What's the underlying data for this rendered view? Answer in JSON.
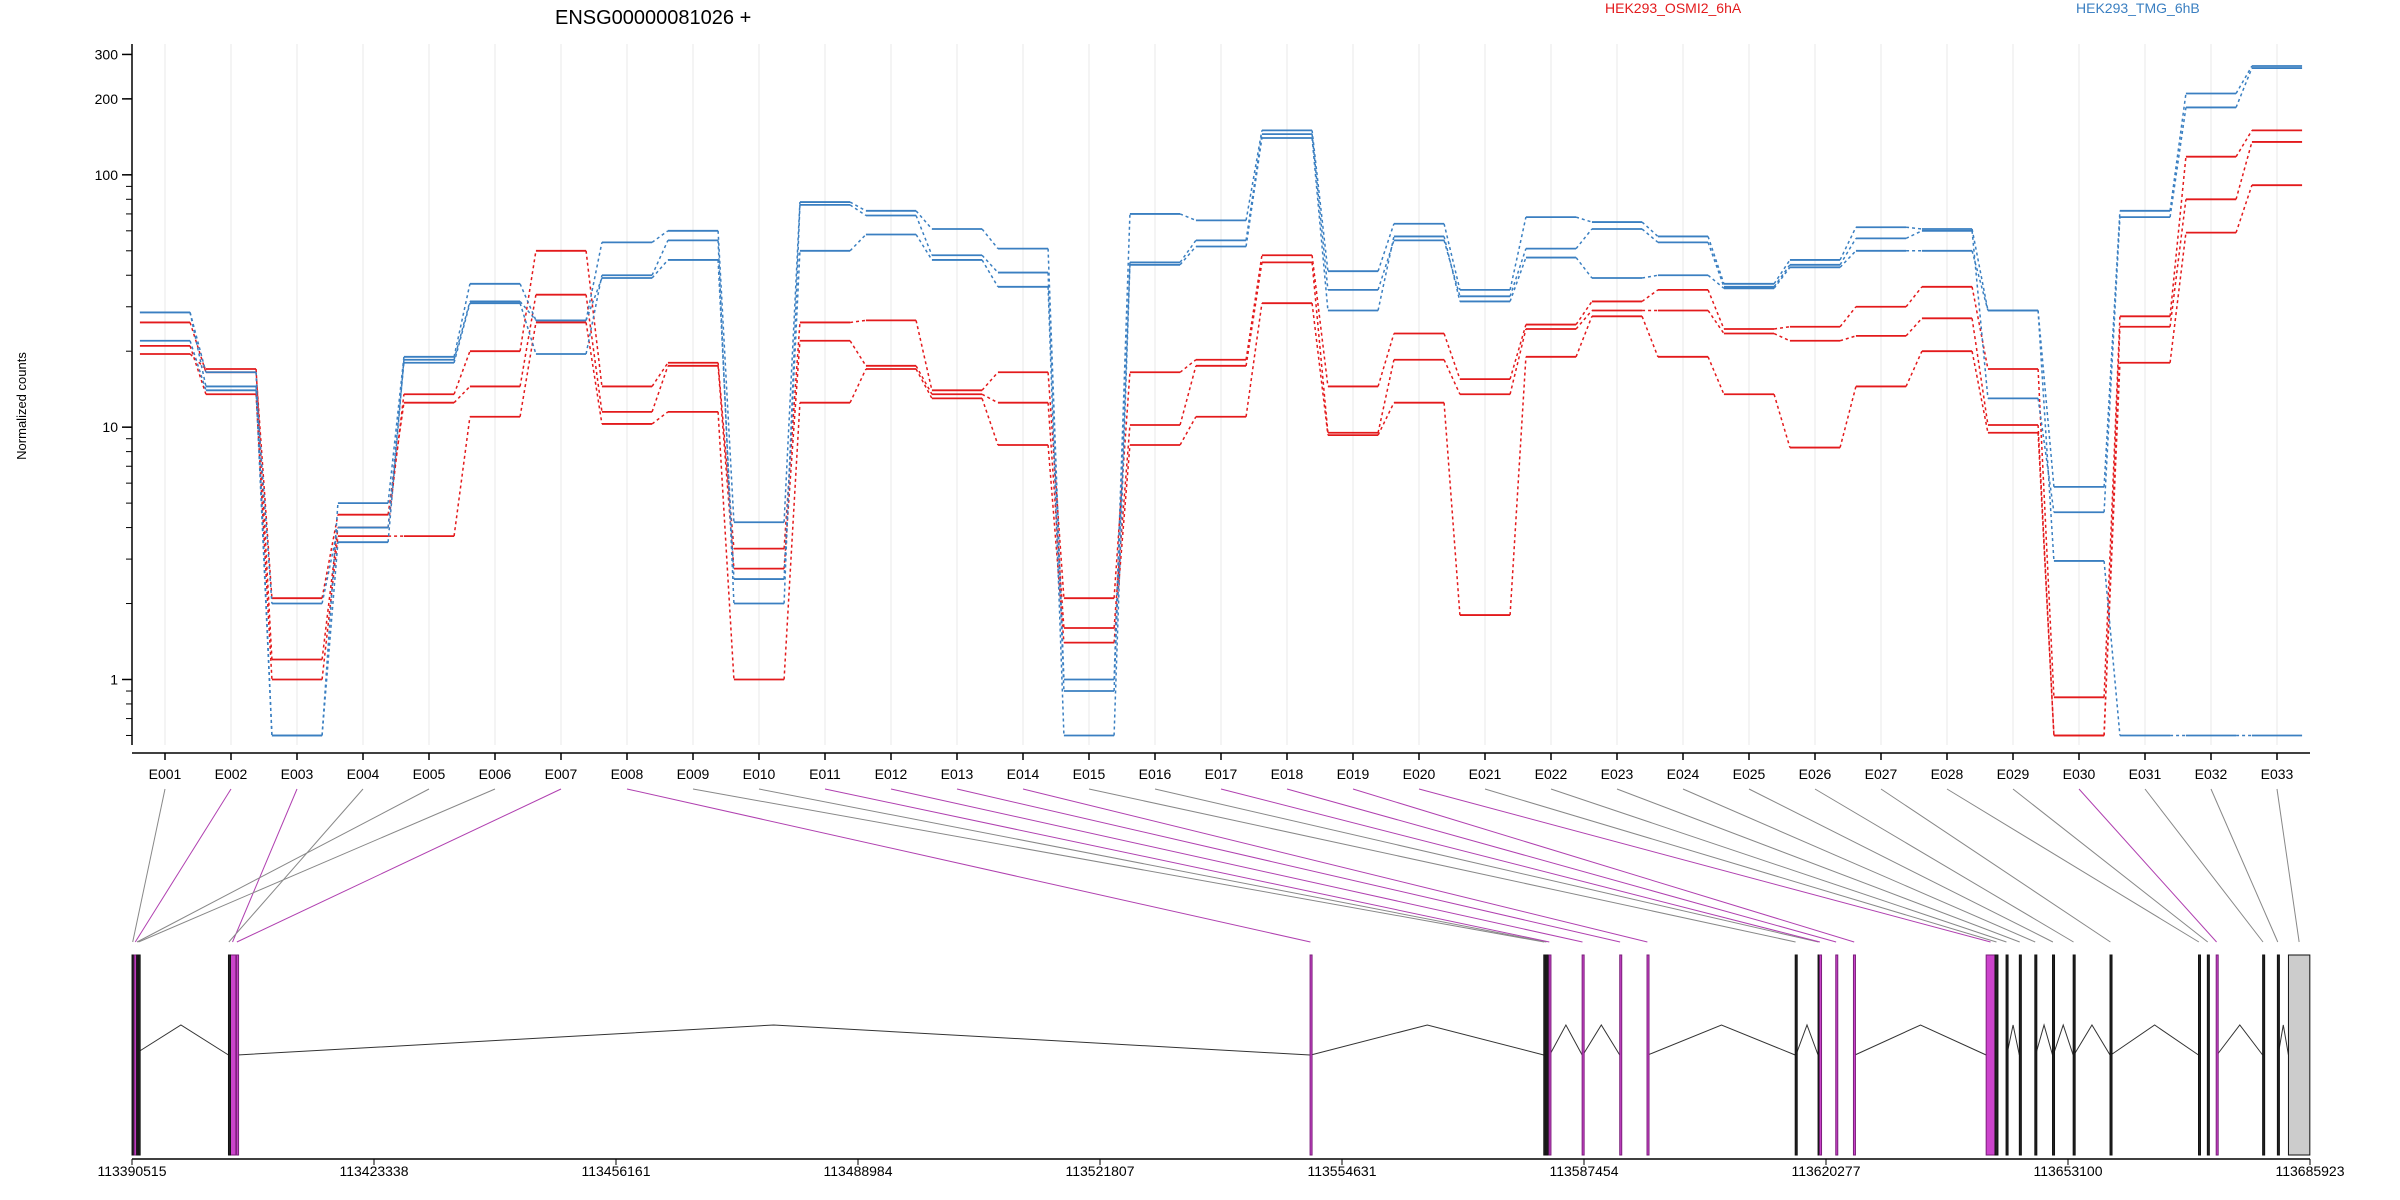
{
  "chart_data": [
    {
      "type": "line",
      "title": "ENSG00000081026 +",
      "xlabel": "",
      "ylabel": "Normalized counts",
      "y_scale": "log",
      "ylim": [
        0.55,
        330
      ],
      "y_ticks": [
        1,
        10,
        100,
        200,
        300
      ],
      "y_tick_labels": [
        "1",
        "10",
        "100",
        "200",
        "300"
      ],
      "grid": "vertical lines at each exon",
      "legend": "top",
      "categories": [
        "E001",
        "E002",
        "E003",
        "E004",
        "E005",
        "E006",
        "E007",
        "E008",
        "E009",
        "E010",
        "E011",
        "E012",
        "E013",
        "E014",
        "E015",
        "E016",
        "E017",
        "E018",
        "E019",
        "E020",
        "E021",
        "E022",
        "E023",
        "E024",
        "E025",
        "E026",
        "E027",
        "E028",
        "E029",
        "E030",
        "E031",
        "E032",
        "E033"
      ],
      "series": [
        {
          "name": "HEK293_OSMI2_6hA",
          "color": "#e31a1c",
          "replicate": 1,
          "values": [
            19.5,
            17.0,
            1.2,
            4.0,
            13.5,
            20.0,
            50.0,
            14.5,
            18.0,
            3.3,
            26.0,
            26.5,
            14.0,
            16.5,
            2.1,
            16.5,
            18.5,
            48.0,
            14.5,
            23.5,
            15.5,
            25.5,
            31.5,
            35.0,
            24.5,
            25.0,
            30.0,
            36.0,
            17.0,
            0.85,
            27.5,
            118.0,
            150.0
          ]
        },
        {
          "name": "HEK293_OSMI2_6hA",
          "color": "#e31a1c",
          "replicate": 2,
          "values": [
            26.0,
            16.5,
            2.1,
            4.5,
            12.5,
            14.5,
            33.5,
            11.5,
            17.5,
            2.75,
            22.0,
            17.5,
            13.5,
            12.5,
            1.6,
            10.2,
            17.5,
            45.0,
            9.5,
            18.5,
            13.5,
            24.5,
            29.0,
            29.0,
            23.5,
            22.0,
            23.0,
            27.0,
            10.2,
            0.6,
            25.0,
            80.0,
            135.0
          ]
        },
        {
          "name": "HEK293_OSMI2_6hA",
          "color": "#e31a1c",
          "replicate": 3,
          "values": [
            21.0,
            13.5,
            1.0,
            3.7,
            3.7,
            11.0,
            26.0,
            10.3,
            11.5,
            1.0,
            12.5,
            17.0,
            13.0,
            8.5,
            1.4,
            8.5,
            11.0,
            31.0,
            9.3,
            12.5,
            1.8,
            19.0,
            27.5,
            19.0,
            13.5,
            8.3,
            14.5,
            20.0,
            9.5,
            0.6,
            18.0,
            59.0,
            91.0
          ]
        },
        {
          "name": "HEK293_TMG_6hB",
          "color": "#3a7fc1",
          "replicate": 1,
          "values": [
            28.5,
            16.5,
            0.6,
            5.0,
            19.0,
            37.0,
            26.5,
            54.0,
            60.0,
            4.2,
            78.0,
            72.0,
            61.0,
            51.0,
            1.0,
            70.0,
            66.0,
            150.0,
            41.5,
            64.0,
            35.0,
            68.0,
            65.0,
            57.0,
            37.0,
            46.0,
            62.0,
            61.0,
            29.0,
            5.8,
            72.0,
            210.0,
            270.0
          ]
        },
        {
          "name": "HEK293_TMG_6hB",
          "color": "#3a7fc1",
          "replicate": 2,
          "values": [
            28.5,
            14.5,
            2.0,
            4.0,
            18.0,
            31.0,
            19.5,
            40.0,
            55.0,
            2.0,
            76.0,
            69.0,
            48.0,
            41.0,
            0.9,
            45.0,
            55.0,
            145.0,
            35.0,
            55.0,
            33.0,
            51.0,
            61.0,
            54.0,
            36.0,
            44.0,
            56.0,
            60.0,
            13.0,
            4.6,
            68.0,
            185.0,
            265.0
          ]
        },
        {
          "name": "HEK293_TMG_6hB",
          "color": "#3a7fc1",
          "replicate": 3,
          "values": [
            22.0,
            14.0,
            0.6,
            3.5,
            18.5,
            31.5,
            26.5,
            39.0,
            46.0,
            2.5,
            50.0,
            58.0,
            46.0,
            36.0,
            0.6,
            44.0,
            52.0,
            140.0,
            29.0,
            57.0,
            31.5,
            47.0,
            39.0,
            40.0,
            35.5,
            43.0,
            50.0,
            50.0,
            29.0,
            2.95,
            0.6,
            0.6,
            0.6
          ]
        }
      ]
    },
    {
      "type": "gene-model",
      "xlabel": "",
      "x_ticks": [
        113390515,
        113423338,
        113456161,
        113488984,
        113521807,
        113554631,
        113587454,
        113620277,
        113653100,
        113685923
      ],
      "x_tick_labels": [
        "113390515",
        "113423338",
        "113456161",
        "113488984",
        "113521807",
        "113554631",
        "113587454",
        "113620277",
        "113653100",
        "113685923"
      ],
      "highlight_color": "#cc44cc",
      "exons": [
        {
          "id": "E001",
          "start": 113390520,
          "end": 113390700,
          "highlight": false
        },
        {
          "id": "E002",
          "start": 113390820,
          "end": 113391100,
          "highlight": true
        },
        {
          "id": "E003",
          "start": 113403700,
          "end": 113404600,
          "highlight": true
        },
        {
          "id": "E004",
          "start": 113403600,
          "end": 113403700,
          "highlight": false
        },
        {
          "id": "E005",
          "start": 113391150,
          "end": 113391250,
          "highlight": false
        },
        {
          "id": "E006",
          "start": 113391350,
          "end": 113391450,
          "highlight": false
        },
        {
          "id": "E007",
          "start": 113404700,
          "end": 113404780,
          "highlight": true
        },
        {
          "id": "E008",
          "start": 113550300,
          "end": 113550400,
          "highlight": true
        },
        {
          "id": "E009",
          "start": 113582000,
          "end": 113582100,
          "highlight": false
        },
        {
          "id": "E010",
          "start": 113582300,
          "end": 113582400,
          "highlight": false
        },
        {
          "id": "E011",
          "start": 113582700,
          "end": 113582800,
          "highlight": true
        },
        {
          "id": "E012",
          "start": 113587200,
          "end": 113587300,
          "highlight": true
        },
        {
          "id": "E013",
          "start": 113592300,
          "end": 113592400,
          "highlight": true
        },
        {
          "id": "E014",
          "start": 113596000,
          "end": 113596100,
          "highlight": true
        },
        {
          "id": "E015",
          "start": 113616100,
          "end": 113616200,
          "highlight": false
        },
        {
          "id": "E016",
          "start": 113619200,
          "end": 113619300,
          "highlight": false
        },
        {
          "id": "E017",
          "start": 113619400,
          "end": 113619500,
          "highlight": true
        },
        {
          "id": "E018",
          "start": 113621600,
          "end": 113621700,
          "highlight": true
        },
        {
          "id": "E019",
          "start": 113624000,
          "end": 113624200,
          "highlight": true
        },
        {
          "id": "E020",
          "start": 113642000,
          "end": 113643200,
          "highlight": true
        },
        {
          "id": "E021",
          "start": 113643200,
          "end": 113643600,
          "highlight": false
        },
        {
          "id": "E022",
          "start": 113644700,
          "end": 113644800,
          "highlight": false
        },
        {
          "id": "E023",
          "start": 113646500,
          "end": 113646600,
          "highlight": false
        },
        {
          "id": "E024",
          "start": 113648600,
          "end": 113648700,
          "highlight": false
        },
        {
          "id": "E025",
          "start": 113651000,
          "end": 113651100,
          "highlight": false
        },
        {
          "id": "E026",
          "start": 113653800,
          "end": 113653900,
          "highlight": false
        },
        {
          "id": "E027",
          "start": 113658800,
          "end": 113658900,
          "highlight": false
        },
        {
          "id": "E028",
          "start": 113670800,
          "end": 113670900,
          "highlight": false
        },
        {
          "id": "E029",
          "start": 113672000,
          "end": 113672100,
          "highlight": false
        },
        {
          "id": "E030",
          "start": 113673200,
          "end": 113673300,
          "highlight": true
        },
        {
          "id": "E031",
          "start": 113679500,
          "end": 113679600,
          "highlight": false
        },
        {
          "id": "E032",
          "start": 113681500,
          "end": 113681600,
          "highlight": false
        },
        {
          "id": "E033",
          "start": 113683000,
          "end": 113685900,
          "highlight": false
        }
      ],
      "introns": [
        [
          113390700,
          113403600
        ],
        [
          113404780,
          113550300
        ],
        [
          113550400,
          113582000
        ],
        [
          113582800,
          113587200
        ],
        [
          113587300,
          113592300
        ],
        [
          113596100,
          113616100
        ],
        [
          113616200,
          113619200
        ],
        [
          113624200,
          113642000
        ],
        [
          113644800,
          113646500
        ],
        [
          113648700,
          113651000
        ],
        [
          113651100,
          113653800
        ],
        [
          113653900,
          113658800
        ],
        [
          113658900,
          113670800
        ],
        [
          113673300,
          113679500
        ],
        [
          113681600,
          113683000
        ]
      ]
    }
  ]
}
